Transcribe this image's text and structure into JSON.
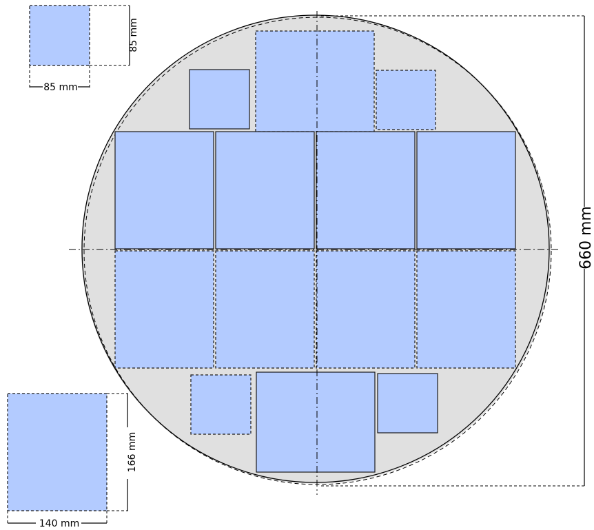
{
  "diagram": {
    "colors": {
      "wafer_fill": "#e0e0e0",
      "wafer_outline": "#000000",
      "panel_fill": "#b3cbff",
      "panel_stroke": "#1a1a1a"
    },
    "dimensions": {
      "wafer_diameter": "660 mm",
      "small_width": "85 mm",
      "small_height": "85 mm",
      "large_width": "140 mm",
      "large_height": "166 mm"
    }
  }
}
